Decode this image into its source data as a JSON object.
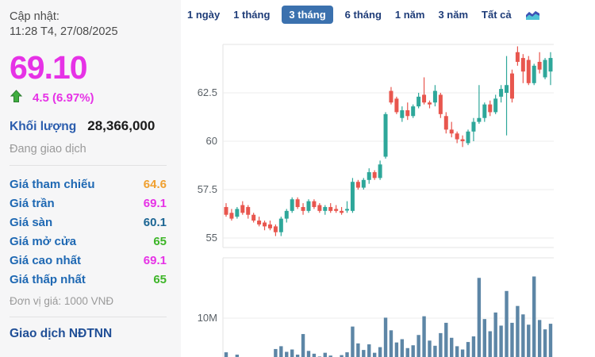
{
  "sidebar": {
    "updated_label": "Cập nhật:",
    "updated_time": "11:28 T4, 27/08/2025",
    "price": "69.10",
    "change": "4.5 (6.97%)",
    "volume_label": "Khối lượng",
    "volume_value": "28,366,000",
    "status": "Đang giao dịch",
    "stats": [
      {
        "label": "Giá tham chiếu",
        "value": "64.6",
        "color": "#f0a030"
      },
      {
        "label": "Giá trần",
        "value": "69.1",
        "color": "#e632e6"
      },
      {
        "label": "Giá sàn",
        "value": "60.1",
        "color": "#1b6593"
      },
      {
        "label": "Giá mở cửa",
        "value": "65",
        "color": "#3db528"
      },
      {
        "label": "Giá cao nhất",
        "value": "69.1",
        "color": "#e632e6"
      },
      {
        "label": "Giá thấp nhất",
        "value": "65",
        "color": "#3db528"
      }
    ],
    "unit_note": "Đơn vị giá: 1000 VNĐ",
    "foreign_section_title": "Giao dịch NĐTNN"
  },
  "tabs": {
    "items": [
      "1 ngày",
      "1 tháng",
      "3 tháng",
      "6 tháng",
      "1 năm",
      "3 năm",
      "Tất cả"
    ],
    "active": "3 tháng",
    "active_bg": "#3b71ae"
  },
  "colors": {
    "accent_magenta": "#e632e6",
    "up_green": "#2ea79a",
    "down_red": "#e8564e",
    "volume_bar": "#5d86a6",
    "arrow_green": "#3fae3f",
    "grid": "#ececec",
    "pane_border": "#e3e3e3",
    "tick_text": "#596066"
  },
  "chart_data": {
    "type": "candlestick_with_volume",
    "period_shown": "3 tháng",
    "price_axis_ticks": [
      62.5,
      60,
      57.5,
      55
    ],
    "price_axis_range": [
      54.5,
      65.0
    ],
    "volume_axis_tick_label": "10M",
    "volume_axis_tick_value_millions": 10,
    "grid": true,
    "candles_ohlc": [
      [
        56.6,
        56.8,
        56.1,
        56.2
      ],
      [
        56.3,
        56.5,
        55.9,
        56.0
      ],
      [
        56.1,
        56.6,
        56.0,
        56.5
      ],
      [
        56.7,
        56.9,
        56.2,
        56.3
      ],
      [
        56.6,
        56.7,
        56.0,
        56.2
      ],
      [
        56.2,
        56.3,
        55.8,
        55.9
      ],
      [
        55.9,
        56.1,
        55.6,
        55.7
      ],
      [
        55.8,
        55.9,
        55.4,
        55.6
      ],
      [
        55.7,
        55.9,
        55.4,
        55.5
      ],
      [
        55.6,
        55.7,
        55.1,
        55.3
      ],
      [
        55.3,
        56.1,
        55.1,
        56.0
      ],
      [
        56.0,
        56.5,
        55.8,
        56.4
      ],
      [
        56.4,
        57.1,
        56.3,
        57.0
      ],
      [
        57.0,
        57.1,
        56.5,
        56.6
      ],
      [
        56.6,
        56.8,
        56.2,
        56.4
      ],
      [
        56.4,
        57.0,
        56.3,
        56.9
      ],
      [
        56.9,
        57.0,
        56.5,
        56.6
      ],
      [
        56.7,
        56.8,
        56.3,
        56.4
      ],
      [
        56.4,
        56.7,
        56.2,
        56.6
      ],
      [
        56.6,
        56.8,
        56.3,
        56.4
      ],
      [
        56.5,
        56.7,
        56.3,
        56.4
      ],
      [
        56.4,
        56.6,
        56.2,
        56.3
      ],
      [
        56.5,
        56.9,
        56.3,
        56.5
      ],
      [
        56.4,
        58.1,
        56.3,
        57.9
      ],
      [
        57.9,
        58.0,
        57.5,
        57.6
      ],
      [
        57.6,
        58.1,
        57.5,
        58.0
      ],
      [
        58.0,
        58.6,
        57.8,
        58.4
      ],
      [
        58.4,
        58.5,
        58.0,
        58.1
      ],
      [
        58.1,
        59.0,
        58.0,
        58.8
      ],
      [
        59.2,
        61.5,
        59.1,
        61.4
      ],
      [
        62.6,
        62.8,
        61.9,
        62.0
      ],
      [
        62.2,
        62.3,
        61.4,
        61.5
      ],
      [
        61.2,
        61.8,
        61.0,
        61.6
      ],
      [
        61.6,
        62.0,
        61.1,
        61.3
      ],
      [
        61.3,
        61.9,
        61.2,
        61.8
      ],
      [
        61.8,
        62.5,
        61.7,
        62.3
      ],
      [
        62.4,
        63.3,
        61.9,
        62.0
      ],
      [
        62.0,
        62.1,
        61.7,
        61.9
      ],
      [
        62.0,
        62.9,
        61.8,
        62.6
      ],
      [
        62.4,
        62.5,
        61.2,
        61.4
      ],
      [
        61.3,
        61.5,
        60.4,
        60.6
      ],
      [
        60.6,
        61.0,
        60.2,
        60.4
      ],
      [
        60.4,
        60.5,
        59.9,
        60.1
      ],
      [
        60.1,
        60.3,
        59.7,
        60.0
      ],
      [
        59.9,
        60.6,
        59.8,
        60.5
      ],
      [
        60.5,
        61.2,
        60.0,
        61.0
      ],
      [
        61.0,
        62.9,
        60.9,
        61.2
      ],
      [
        61.2,
        62.0,
        61.0,
        61.9
      ],
      [
        61.9,
        62.1,
        61.3,
        61.5
      ],
      [
        61.5,
        62.4,
        61.4,
        62.2
      ],
      [
        62.3,
        62.9,
        62.0,
        62.7
      ],
      [
        62.5,
        64.4,
        60.3,
        62.9
      ],
      [
        63.5,
        63.7,
        62.0,
        62.2
      ],
      [
        64.6,
        64.9,
        63.9,
        64.1
      ],
      [
        64.3,
        64.5,
        63.0,
        63.6
      ],
      [
        64.2,
        64.4,
        62.9,
        63.0
      ],
      [
        63.0,
        64.0,
        62.9,
        63.9
      ],
      [
        64.1,
        64.6,
        63.5,
        63.7
      ],
      [
        63.3,
        64.3,
        63.2,
        64.2
      ],
      [
        63.6,
        64.6,
        62.9,
        64.3
      ]
    ],
    "volumes_millions": [
      2.7,
      0.9,
      2.2,
      1.3,
      1.0,
      0.8,
      1.2,
      0.9,
      1.0,
      3.4,
      4.0,
      2.8,
      3.3,
      2.2,
      6.6,
      3.0,
      2.4,
      1.8,
      2.6,
      2.0,
      1.5,
      2.1,
      2.7,
      8.2,
      4.6,
      3.2,
      4.4,
      2.6,
      3.8,
      10.1,
      7.4,
      4.8,
      5.5,
      3.6,
      4.2,
      6.4,
      10.4,
      5.2,
      4.1,
      6.8,
      9.0,
      5.8,
      4.0,
      3.3,
      4.9,
      6.1,
      18.6,
      9.8,
      7.2,
      11.2,
      8.4,
      15.8,
      9.0,
      12.6,
      10.8,
      8.6,
      18.9,
      9.6,
      7.6,
      8.8
    ]
  }
}
